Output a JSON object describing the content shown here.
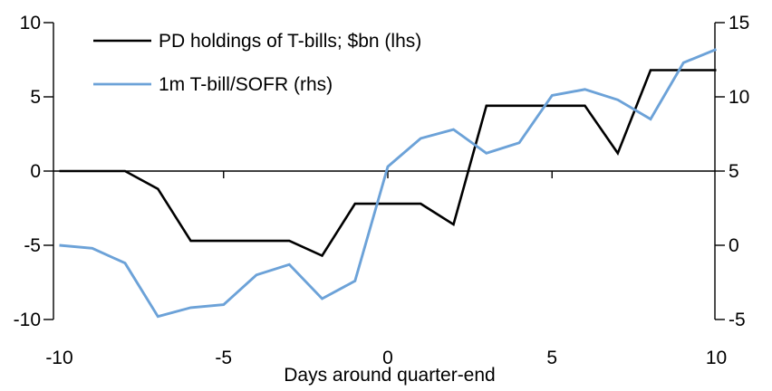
{
  "chart_data": {
    "type": "line",
    "title": "",
    "xlabel": "Days around quarter-end",
    "x": [
      -10,
      -9,
      -8,
      -7,
      -6,
      -5,
      -4,
      -3,
      -2,
      -1,
      0,
      1,
      2,
      3,
      4,
      5,
      6,
      7,
      8,
      9,
      10
    ],
    "x_ticks": [
      -10,
      -5,
      0,
      5,
      10
    ],
    "left_axis": {
      "ticks": [
        10,
        5,
        0,
        -5,
        -10
      ],
      "min": -10,
      "max": 10
    },
    "right_axis": {
      "ticks": [
        15,
        10,
        5,
        0,
        -5
      ],
      "min": -5,
      "max": 15
    },
    "grid": false,
    "legend_position": "top-left",
    "series": [
      {
        "name": "PD holdings of T-bills; $bn (lhs)",
        "axis": "left",
        "color": "#000000",
        "values": [
          0,
          0,
          0,
          -1.2,
          -4.7,
          -4.7,
          -4.7,
          -4.7,
          -5.7,
          -2.2,
          -2.2,
          -2.2,
          -3.6,
          4.4,
          4.4,
          4.4,
          4.4,
          1.2,
          6.8,
          6.8,
          6.8
        ]
      },
      {
        "name": "1m T-bill/SOFR (rhs)",
        "axis": "right",
        "color": "#6CA2D8",
        "values": [
          0,
          -0.2,
          -1.2,
          -4.8,
          -4.2,
          -4,
          -2,
          -1.3,
          -3.6,
          -2.4,
          5.3,
          7.2,
          7.8,
          6.2,
          6.9,
          10.1,
          10.5,
          9.8,
          8.5,
          12.3,
          13.2
        ]
      }
    ]
  }
}
